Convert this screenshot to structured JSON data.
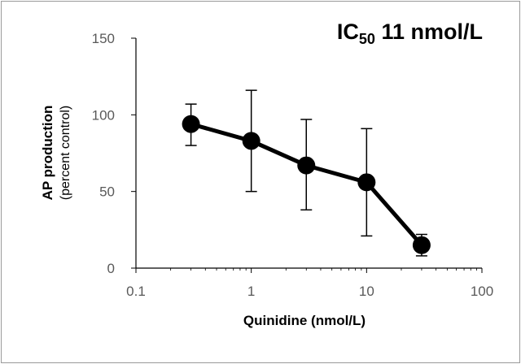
{
  "chart_data": {
    "type": "line",
    "title_main": "IC",
    "title_sub": "50",
    "title_rest": " 11 nmol/L",
    "xlabel": "Quinidine (nmol/L)",
    "ylabel_main": "AP production",
    "ylabel_sub": "(percent control)",
    "xscale": "log",
    "xlim": [
      0.1,
      100
    ],
    "ylim": [
      0,
      150
    ],
    "xticks": [
      0.1,
      1,
      10,
      100
    ],
    "xtick_labels": [
      "0.1",
      "1",
      "10",
      "100"
    ],
    "yticks": [
      0,
      50,
      100,
      150
    ],
    "ytick_labels": [
      "0",
      "50",
      "100",
      "150"
    ],
    "grid": false,
    "series": [
      {
        "x": [
          0.3,
          1,
          3,
          10,
          30
        ],
        "y": [
          94,
          83,
          67,
          56,
          15
        ],
        "err_low": [
          14,
          33,
          29,
          35,
          7
        ],
        "err_high": [
          13,
          33,
          30,
          35,
          7
        ],
        "color": "#000000"
      }
    ]
  }
}
